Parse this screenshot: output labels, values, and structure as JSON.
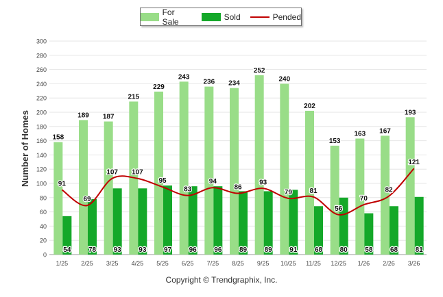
{
  "chart_data": {
    "type": "bar",
    "title": "",
    "xlabel": "",
    "ylabel": "Number of Homes",
    "ylim": [
      0,
      300
    ],
    "yticks": [
      0,
      20,
      40,
      60,
      80,
      100,
      120,
      140,
      160,
      180,
      200,
      220,
      240,
      260,
      280,
      300
    ],
    "grid": true,
    "legend_position": "top",
    "categories": [
      "1/25",
      "2/25",
      "3/25",
      "4/25",
      "5/25",
      "6/25",
      "7/25",
      "8/25",
      "9/25",
      "10/25",
      "11/25",
      "12/25",
      "1/26",
      "2/26",
      "3/26"
    ],
    "series": [
      {
        "name": "For Sale",
        "kind": "bar",
        "color": "#99dd88",
        "values": [
          158,
          189,
          187,
          215,
          229,
          243,
          236,
          234,
          252,
          240,
          202,
          153,
          163,
          167,
          193
        ]
      },
      {
        "name": "Sold",
        "kind": "bar",
        "color": "#14a829",
        "values": [
          54,
          78,
          93,
          93,
          97,
          96,
          96,
          89,
          89,
          91,
          68,
          80,
          58,
          68,
          81
        ]
      },
      {
        "name": "Pended",
        "kind": "line",
        "color": "#c00000",
        "values": [
          91,
          69,
          107,
          107,
          95,
          83,
          94,
          86,
          93,
          79,
          81,
          56,
          70,
          82,
          121
        ]
      }
    ]
  },
  "footer": {
    "copyright": "Copyright © Trendgraphix, Inc."
  }
}
